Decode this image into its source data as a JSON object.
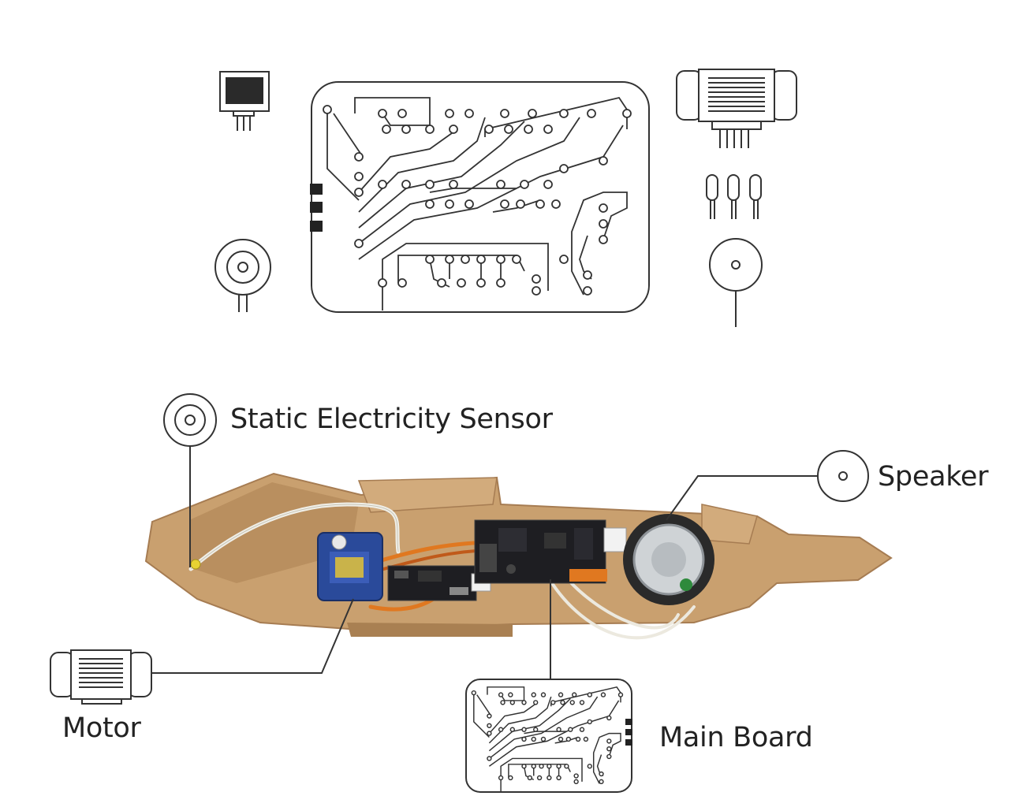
{
  "labels": {
    "static_sensor": "Static Electricity Sensor",
    "speaker": "Speaker",
    "motor": "Motor",
    "main_board": "Main Board"
  },
  "colors": {
    "line": "#333333",
    "cardboard": "#c49a6c",
    "cardboard_dark": "#a67c52",
    "board": "#1e1e22",
    "servo_blue": "#2a4a9a",
    "wire_orange": "#e07820",
    "wire_white": "#f0efe8"
  }
}
